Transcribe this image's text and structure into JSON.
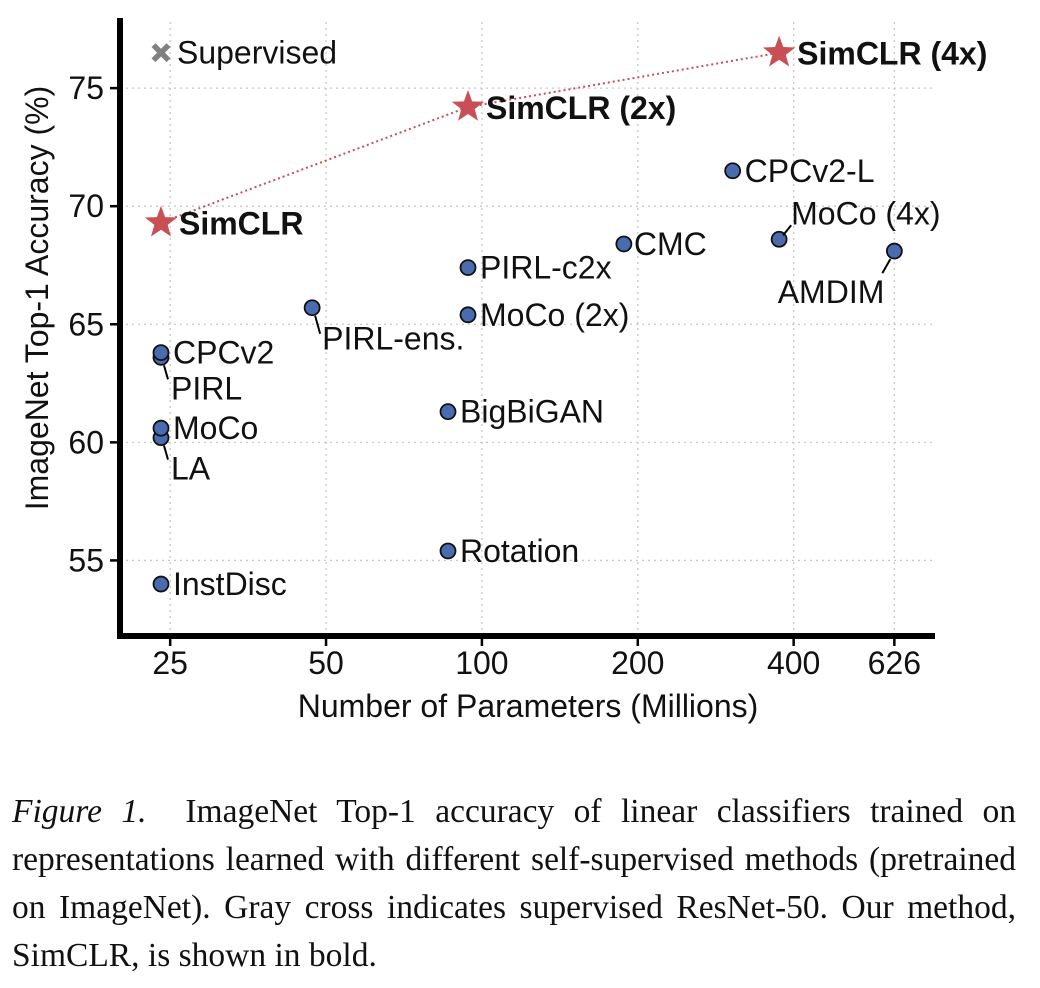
{
  "chart_data": {
    "type": "scatter",
    "title": "",
    "xlabel": "Number of Parameters (Millions)",
    "ylabel": "ImageNet Top-1 Accuracy (%)",
    "x_scale": "log",
    "x_ticks": [
      25,
      50,
      100,
      200,
      400,
      626
    ],
    "y_ticks": [
      55,
      60,
      65,
      70,
      75
    ],
    "xlim": [
      20,
      750
    ],
    "ylim": [
      51.8,
      77.8
    ],
    "grid": true,
    "colors": {
      "point": "#4a6bb0",
      "simclr": "#c94f55",
      "supervised": "#808080",
      "connector": "#c94f55"
    },
    "points": [
      {
        "name": "InstDisc",
        "x": 24,
        "y": 54.0
      },
      {
        "name": "Rotation",
        "x": 86,
        "y": 55.4
      },
      {
        "name": "BigBiGAN",
        "x": 86,
        "y": 61.3
      },
      {
        "name": "LA",
        "x": 24,
        "y": 60.2
      },
      {
        "name": "MoCo",
        "x": 24,
        "y": 60.6
      },
      {
        "name": "PIRL",
        "x": 24,
        "y": 63.6
      },
      {
        "name": "CPCv2",
        "x": 24,
        "y": 63.8
      },
      {
        "name": "PIRL-ens.",
        "x": 47,
        "y": 65.7
      },
      {
        "name": "MoCo (2x)",
        "x": 94,
        "y": 65.4
      },
      {
        "name": "PIRL-c2x",
        "x": 94,
        "y": 67.4
      },
      {
        "name": "CMC",
        "x": 188,
        "y": 68.4
      },
      {
        "name": "CPCv2-L",
        "x": 305,
        "y": 71.5
      },
      {
        "name": "MoCo (4x)",
        "x": 375,
        "y": 68.6
      },
      {
        "name": "AMDIM",
        "x": 626,
        "y": 68.1
      }
    ],
    "simclr": [
      {
        "name": "SimCLR",
        "x": 24,
        "y": 69.3
      },
      {
        "name": "SimCLR (2x)",
        "x": 94,
        "y": 74.2
      },
      {
        "name": "SimCLR (4x)",
        "x": 375,
        "y": 76.5
      }
    ],
    "supervised": {
      "name": "Supervised",
      "x": 24,
      "y": 76.5
    }
  },
  "caption": {
    "label": "Figure 1.",
    "text": "ImageNet Top-1 accuracy of linear classifiers trained on representations learned with different self-supervised methods (pretrained on ImageNet). Gray cross indicates supervised ResNet-50. Our method, SimCLR, is shown in bold."
  }
}
